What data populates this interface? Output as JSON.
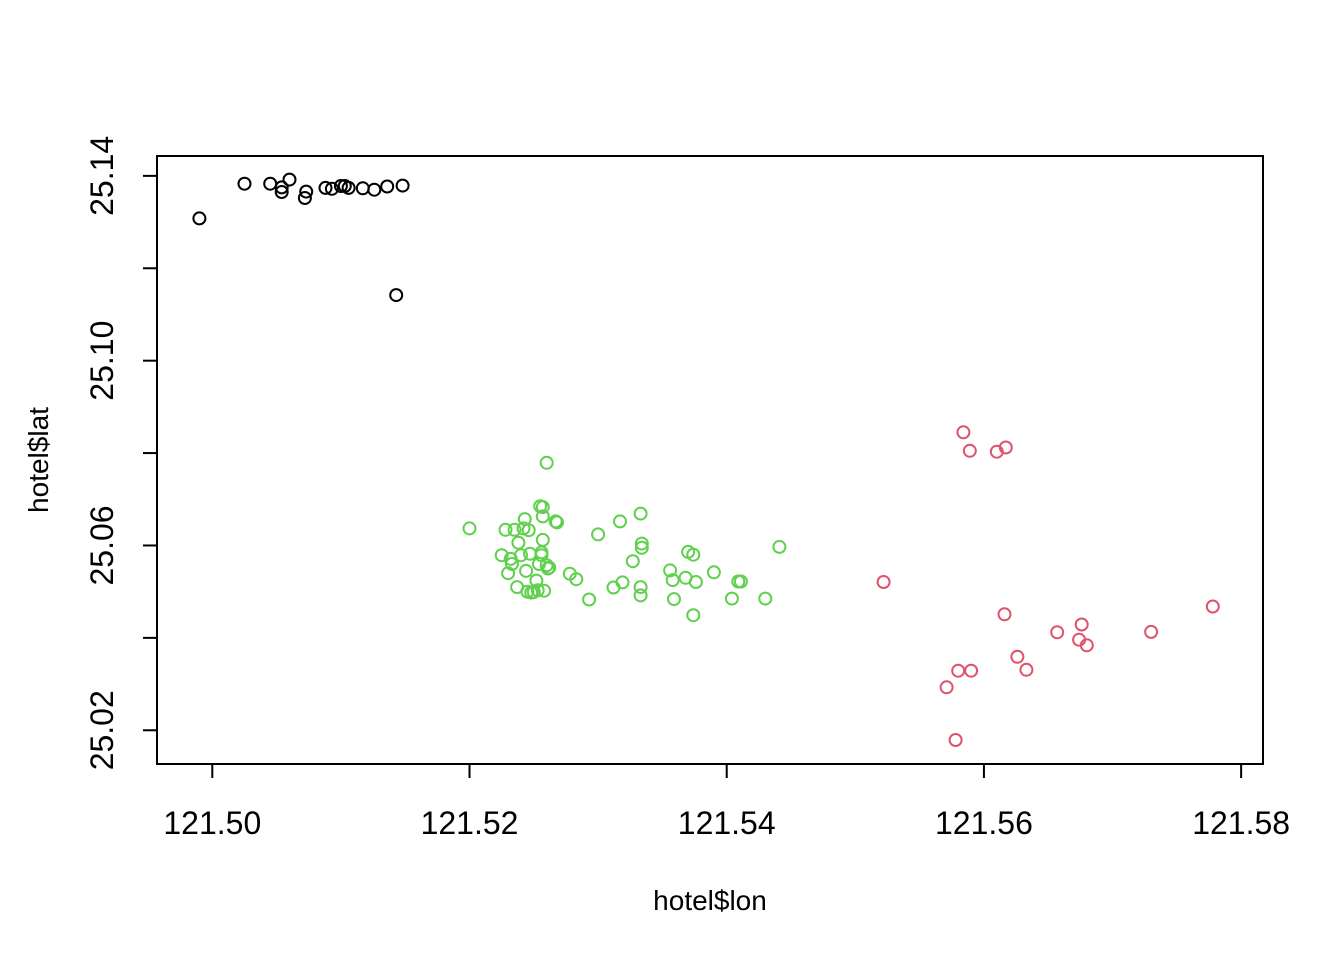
{
  "chart_data": {
    "type": "scatter",
    "xlabel": "hotel$lon",
    "ylabel": "hotel$lat",
    "xlim": [
      121.4957,
      121.5817
    ],
    "ylim": [
      25.0127,
      25.1443
    ],
    "x_ticks": [
      121.5,
      121.52,
      121.54,
      121.56,
      121.58
    ],
    "x_tick_labels": [
      "121.50",
      "121.52",
      "121.54",
      "121.56",
      "121.58"
    ],
    "y_ticks": [
      25.02,
      25.04,
      25.06,
      25.08,
      25.1,
      25.12,
      25.14
    ],
    "y_tick_labels": [
      "25.02",
      "",
      "25.06",
      "",
      "25.10",
      "",
      "25.14"
    ],
    "grid": false,
    "legend": "none",
    "marker": "open-circle",
    "series": [
      {
        "color": "#000000",
        "points": [
          [
            121.499,
            25.1308
          ],
          [
            121.5025,
            25.1383
          ],
          [
            121.5045,
            25.1383
          ],
          [
            121.5054,
            25.1375
          ],
          [
            121.5054,
            25.1365
          ],
          [
            121.506,
            25.1392
          ],
          [
            121.5072,
            25.1352
          ],
          [
            121.5073,
            25.1366
          ],
          [
            121.5088,
            25.1374
          ],
          [
            121.5093,
            25.1372
          ],
          [
            121.51,
            25.1378
          ],
          [
            121.5103,
            25.1378
          ],
          [
            121.5106,
            25.1374
          ],
          [
            121.5117,
            25.1373
          ],
          [
            121.5126,
            25.137
          ],
          [
            121.5136,
            25.1377
          ],
          [
            121.5148,
            25.1379
          ],
          [
            121.5143,
            25.1142
          ]
        ]
      },
      {
        "color": "#DF536B",
        "points": [
          [
            121.5522,
            25.0521
          ],
          [
            121.5584,
            25.0845
          ],
          [
            121.5589,
            25.0805
          ],
          [
            121.561,
            25.0803
          ],
          [
            121.5617,
            25.0812
          ],
          [
            121.5616,
            25.0451
          ],
          [
            121.5657,
            25.0412
          ],
          [
            121.5676,
            25.0429
          ],
          [
            121.5674,
            25.0396
          ],
          [
            121.568,
            25.0384
          ],
          [
            121.573,
            25.0413
          ],
          [
            121.5778,
            25.0468
          ],
          [
            121.5571,
            25.0293
          ],
          [
            121.558,
            25.0329
          ],
          [
            121.559,
            25.0329
          ],
          [
            121.5626,
            25.0359
          ],
          [
            121.5633,
            25.0331
          ],
          [
            121.5578,
            25.0179
          ]
        ]
      },
      {
        "color": "#61D04F",
        "points": [
          [
            121.52,
            25.0637
          ],
          [
            121.5225,
            25.0579
          ],
          [
            121.5228,
            25.0634
          ],
          [
            121.523,
            25.054
          ],
          [
            121.5232,
            25.0571
          ],
          [
            121.5233,
            25.056
          ],
          [
            121.5235,
            25.0634
          ],
          [
            121.5237,
            25.051
          ],
          [
            121.5238,
            25.0606
          ],
          [
            121.524,
            25.0579
          ],
          [
            121.5242,
            25.0637
          ],
          [
            121.5243,
            25.0657
          ],
          [
            121.5244,
            25.0545
          ],
          [
            121.5245,
            25.05
          ],
          [
            121.5246,
            25.0633
          ],
          [
            121.5247,
            25.0582
          ],
          [
            121.5248,
            25.0498
          ],
          [
            121.525,
            25.0499
          ],
          [
            121.5252,
            25.0524
          ],
          [
            121.5253,
            25.0503
          ],
          [
            121.5254,
            25.056
          ],
          [
            121.5255,
            25.0685
          ],
          [
            121.5256,
            25.0585
          ],
          [
            121.5256,
            25.0579
          ],
          [
            121.5257,
            25.0683
          ],
          [
            121.5257,
            25.0663
          ],
          [
            121.5257,
            25.0612
          ],
          [
            121.5258,
            25.0502
          ],
          [
            121.526,
            25.0557
          ],
          [
            121.5261,
            25.055
          ],
          [
            121.526,
            25.0779
          ],
          [
            121.5262,
            25.0552
          ],
          [
            121.5267,
            25.0652
          ],
          [
            121.5268,
            25.065
          ],
          [
            121.5278,
            25.0539
          ],
          [
            121.5283,
            25.0527
          ],
          [
            121.5293,
            25.0483
          ],
          [
            121.53,
            25.0624
          ],
          [
            121.5312,
            25.0509
          ],
          [
            121.5317,
            25.0652
          ],
          [
            121.5319,
            25.052
          ],
          [
            121.5327,
            25.0566
          ],
          [
            121.5333,
            25.051
          ],
          [
            121.5333,
            25.0492
          ],
          [
            121.5333,
            25.0669
          ],
          [
            121.5334,
            25.0604
          ],
          [
            121.5334,
            25.0595
          ],
          [
            121.5356,
            25.0546
          ],
          [
            121.5358,
            25.0525
          ],
          [
            121.5359,
            25.0484
          ],
          [
            121.5368,
            25.053
          ],
          [
            121.537,
            25.0586
          ],
          [
            121.5374,
            25.058
          ],
          [
            121.5374,
            25.0449
          ],
          [
            121.5376,
            25.0521
          ],
          [
            121.539,
            25.0542
          ],
          [
            121.5404,
            25.0485
          ],
          [
            121.5409,
            25.0522
          ],
          [
            121.5411,
            25.0522
          ],
          [
            121.543,
            25.0485
          ],
          [
            121.5441,
            25.0597
          ]
        ]
      }
    ]
  }
}
